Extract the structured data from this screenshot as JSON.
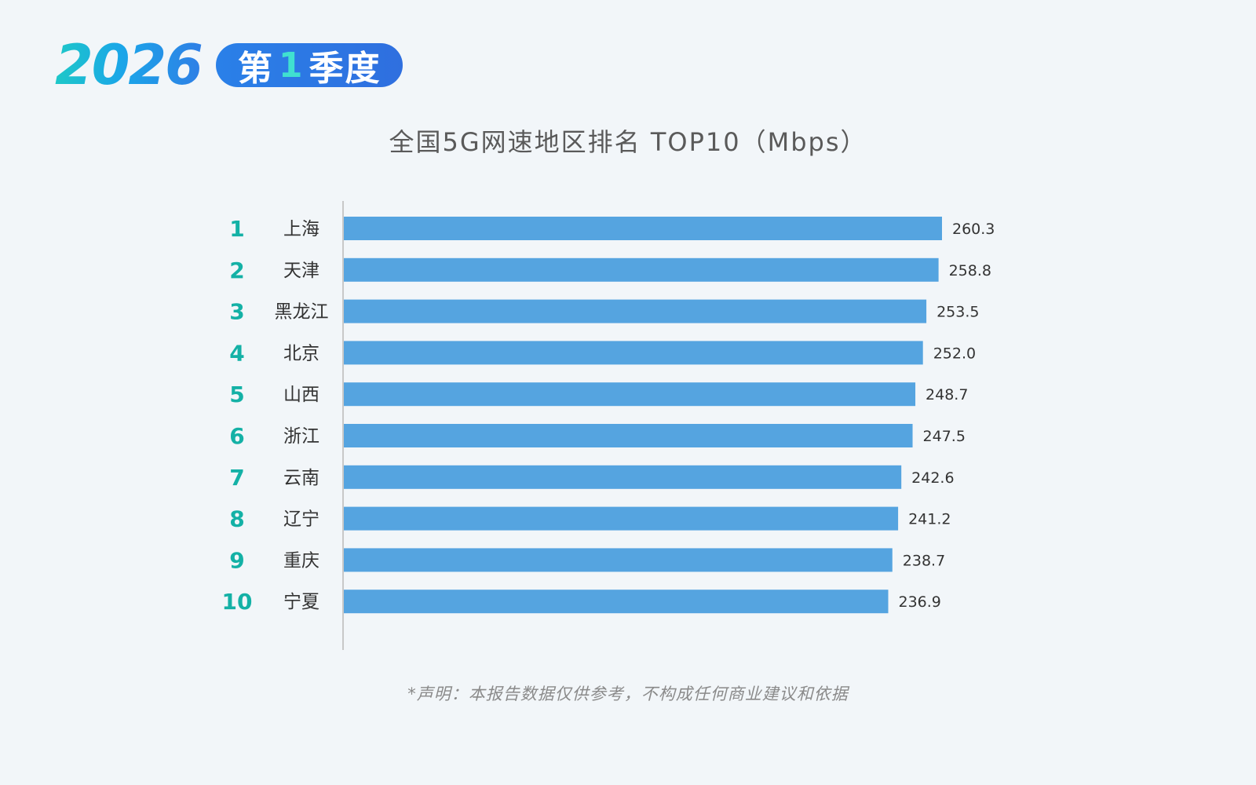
{
  "header": {
    "year": "2026",
    "quarter_prefix": "第",
    "quarter_number": "1",
    "quarter_suffix": "季度"
  },
  "chart_data": {
    "type": "bar",
    "orientation": "horizontal",
    "title": "全国5G网速地区排名 TOP10（Mbps）",
    "ranks": [
      "1",
      "2",
      "3",
      "4",
      "5",
      "6",
      "7",
      "8",
      "9",
      "10"
    ],
    "categories": [
      "上海",
      "天津",
      "黑龙江",
      "北京",
      "山西",
      "浙江",
      "云南",
      "辽宁",
      "重庆",
      "宁夏"
    ],
    "values": [
      260.3,
      258.8,
      253.5,
      252.0,
      248.7,
      247.5,
      242.6,
      241.2,
      238.7,
      236.9
    ],
    "value_labels": [
      "260.3",
      "258.8",
      "253.5",
      "252.0",
      "248.7",
      "247.5",
      "242.6",
      "241.2",
      "238.7",
      "236.9"
    ],
    "xlim": [
      0,
      260.3
    ],
    "grid": false,
    "bar_color": "#55a4e0",
    "rank_color": "#14b1a6"
  },
  "footer": {
    "disclaimer": "*声明：本报告数据仅供参考，不构成任何商业建议和依据"
  }
}
